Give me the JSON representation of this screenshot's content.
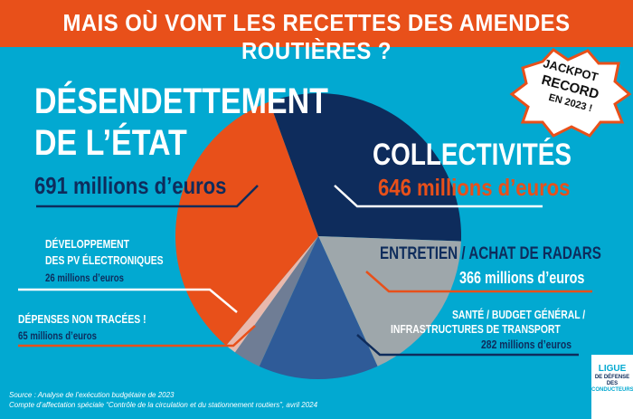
{
  "header": {
    "title": "MAIS OÙ VONT LES RECETTES DES AMENDES ROUTIÈRES ?"
  },
  "badge": {
    "line1": "JACKPOT",
    "line2": "RECORD",
    "line3": "EN 2023 !"
  },
  "chart_data": {
    "type": "pie",
    "title": "MAIS OÙ VONT LES RECETTES DES AMENDES ROUTIÈRES ?",
    "unit": "millions d'euros",
    "slices": [
      {
        "label": "COLLECTIVITÉS",
        "value": 646,
        "value_label": "646 millions d’euros",
        "color": "#0e2c5c"
      },
      {
        "label": "ENTRETIEN / ACHAT DE RADARS",
        "value": 366,
        "value_label": "366 millions d’euros",
        "color": "#9ea7ab"
      },
      {
        "label": "SANTÉ / BUDGET GÉNÉRAL / INFRASTRUCTURES DE TRANSPORT",
        "value": 282,
        "value_label": "282 millions d’euros",
        "color": "#2f5b98"
      },
      {
        "label": "DÉPENSES NON TRACÉES !",
        "value": 65,
        "value_label": "65 millions d’euros",
        "color": "#6f7d95"
      },
      {
        "label": "DÉVELOPPEMENT DES PV ÉLECTRONIQUES",
        "value": 26,
        "value_label": "26 millions d’euros",
        "color": "#e9b9ad"
      },
      {
        "label": "DÉSENDETTEMENT DE L’ÉTAT",
        "value": 691,
        "value_label": "691 millions d’euros",
        "color": "#e8501a"
      }
    ]
  },
  "labels": {
    "desend1": "DÉSENDETTEMENT",
    "desend2": "DE L’ÉTAT",
    "sante1": "SANTÉ / BUDGET GÉNÉRAL /",
    "sante2": "INFRASTRUCTURES DE TRANSPORT",
    "pv1": "DÉVELOPPEMENT",
    "pv2": "DES PV ÉLECTRONIQUES"
  },
  "source": {
    "line1": "Source : Analyse de l’exécution budgétaire de 2023",
    "line2": "Compte d’affectation spéciale “Contrôle de la circulation et du stationnement routiers”, avril 2024"
  },
  "logo": {
    "l1": "LIGUE",
    "l2": "DE DÉFENSE DES",
    "l3": "CONDUCTEURS"
  }
}
